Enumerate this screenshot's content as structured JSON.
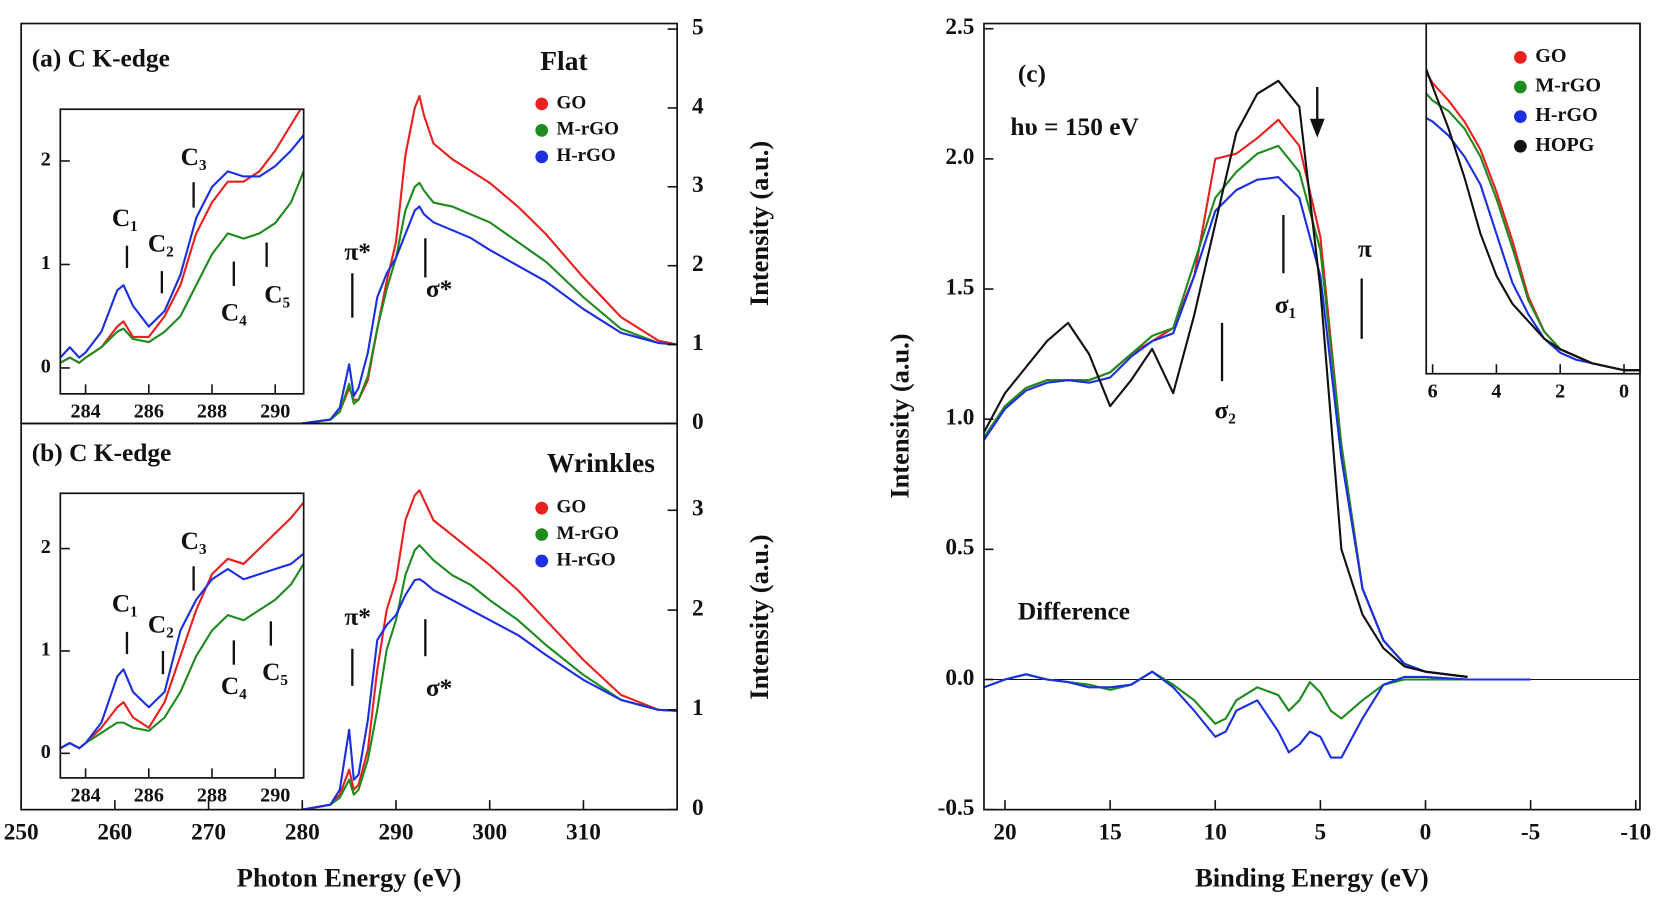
{
  "chart_data": [
    {
      "type": "line",
      "panel": "a-main",
      "annotations": [
        "(a) C K-edge",
        "π*",
        "σ*"
      ],
      "legend_title": "Flat",
      "ylabel": "Intensity (a.u.)",
      "x": [
        280,
        283,
        284,
        285,
        285.5,
        286,
        287,
        288,
        289,
        290,
        291,
        292,
        292.5,
        293,
        294,
        296,
        298,
        300,
        303,
        306,
        310,
        314,
        318,
        320
      ],
      "series": [
        {
          "name": "GO",
          "color": "#e8201e",
          "values": [
            0,
            0.05,
            0.15,
            0.45,
            0.3,
            0.3,
            0.55,
            1.2,
            1.8,
            2.3,
            3.4,
            4.0,
            4.15,
            3.9,
            3.55,
            3.35,
            3.2,
            3.05,
            2.75,
            2.4,
            1.85,
            1.35,
            1.05,
            1.0
          ]
        },
        {
          "name": "M-rGO",
          "color": "#1f8a1f",
          "values": [
            0,
            0.05,
            0.15,
            0.5,
            0.25,
            0.3,
            0.6,
            1.2,
            1.7,
            2.1,
            2.7,
            3.0,
            3.05,
            2.95,
            2.8,
            2.75,
            2.65,
            2.55,
            2.3,
            2.05,
            1.6,
            1.2,
            1.02,
            1.0
          ]
        },
        {
          "name": "H-rGO",
          "color": "#1c2fe0",
          "values": [
            0,
            0.05,
            0.2,
            0.75,
            0.35,
            0.45,
            0.9,
            1.6,
            1.9,
            2.1,
            2.4,
            2.7,
            2.75,
            2.65,
            2.55,
            2.45,
            2.35,
            2.2,
            2.0,
            1.8,
            1.45,
            1.15,
            1.02,
            1.0
          ]
        }
      ],
      "xlim": [
        250,
        320
      ],
      "ylim": [
        0,
        5.07
      ],
      "yticks": [
        0,
        1,
        2,
        3,
        4,
        5
      ]
    },
    {
      "type": "line",
      "panel": "a-inset",
      "annotations": [
        "C₁",
        "C₂",
        "C₃",
        "C₄",
        "C₅"
      ],
      "x": [
        283.2,
        283.5,
        283.8,
        284,
        284.5,
        285,
        285.2,
        285.5,
        286,
        286.5,
        287,
        287.5,
        288,
        288.5,
        289,
        289.5,
        290,
        290.5,
        290.9
      ],
      "series": [
        {
          "name": "GO",
          "color": "#e8201e",
          "values": [
            0.05,
            0.1,
            0.05,
            0.1,
            0.2,
            0.4,
            0.45,
            0.3,
            0.3,
            0.5,
            0.8,
            1.3,
            1.6,
            1.8,
            1.8,
            1.9,
            2.1,
            2.35,
            2.55
          ]
        },
        {
          "name": "M-rGO",
          "color": "#1f8a1f",
          "values": [
            0.05,
            0.1,
            0.05,
            0.1,
            0.2,
            0.35,
            0.38,
            0.28,
            0.25,
            0.35,
            0.5,
            0.8,
            1.1,
            1.3,
            1.25,
            1.3,
            1.4,
            1.6,
            1.9
          ]
        },
        {
          "name": "H-rGO",
          "color": "#1c2fe0",
          "values": [
            0.1,
            0.2,
            0.1,
            0.15,
            0.35,
            0.75,
            0.8,
            0.6,
            0.4,
            0.55,
            0.9,
            1.45,
            1.75,
            1.9,
            1.85,
            1.85,
            1.95,
            2.1,
            2.25
          ]
        }
      ],
      "xlim": [
        283.2,
        290.9
      ],
      "ylim": [
        -0.25,
        2.5
      ],
      "xticks": [
        284,
        286,
        288,
        290
      ],
      "yticks": [
        0,
        1,
        2
      ]
    },
    {
      "type": "line",
      "panel": "b-main",
      "annotations": [
        "(b) C K-edge",
        "π*",
        "σ*"
      ],
      "legend_title": "Wrinkles",
      "xlabel": "Photon Energy (eV)",
      "ylabel": "Intensity (a.u.)",
      "x": [
        280,
        283,
        284,
        285,
        285.5,
        286,
        287,
        288,
        289,
        290,
        291,
        292,
        292.5,
        293,
        294,
        296,
        298,
        300,
        303,
        306,
        310,
        314,
        318,
        320
      ],
      "series": [
        {
          "name": "GO",
          "color": "#e8201e",
          "values": [
            0,
            0.05,
            0.15,
            0.4,
            0.2,
            0.25,
            0.6,
            1.4,
            2.0,
            2.3,
            2.9,
            3.15,
            3.2,
            3.1,
            2.9,
            2.75,
            2.6,
            2.45,
            2.2,
            1.9,
            1.5,
            1.15,
            1.0,
            0.99
          ]
        },
        {
          "name": "M-rGO",
          "color": "#1f8a1f",
          "values": [
            0,
            0.05,
            0.12,
            0.3,
            0.15,
            0.2,
            0.5,
            1.0,
            1.6,
            1.9,
            2.35,
            2.6,
            2.65,
            2.6,
            2.5,
            2.35,
            2.25,
            2.1,
            1.9,
            1.65,
            1.35,
            1.1,
            1.0,
            0.99
          ]
        },
        {
          "name": "H-rGO",
          "color": "#1c2fe0",
          "values": [
            0,
            0.05,
            0.2,
            0.8,
            0.3,
            0.35,
            0.9,
            1.7,
            1.85,
            1.95,
            2.15,
            2.3,
            2.31,
            2.28,
            2.2,
            2.1,
            2.0,
            1.9,
            1.75,
            1.55,
            1.3,
            1.1,
            1.0,
            0.99
          ]
        }
      ],
      "xlim": [
        250,
        320
      ],
      "ylim": [
        0,
        3.87
      ],
      "xticks": [
        250,
        260,
        270,
        280,
        290,
        300,
        310
      ],
      "yticks": [
        0,
        1,
        2,
        3
      ]
    },
    {
      "type": "line",
      "panel": "b-inset",
      "annotations": [
        "C₁",
        "C₂",
        "C₃",
        "C₄",
        "C₅"
      ],
      "x": [
        283.2,
        283.5,
        283.8,
        284,
        284.5,
        285,
        285.2,
        285.5,
        286,
        286.5,
        287,
        287.5,
        288,
        288.5,
        289,
        289.5,
        290,
        290.5,
        290.9
      ],
      "series": [
        {
          "name": "GO",
          "color": "#e8201e",
          "values": [
            0.05,
            0.1,
            0.05,
            0.1,
            0.25,
            0.45,
            0.5,
            0.35,
            0.25,
            0.5,
            0.95,
            1.4,
            1.75,
            1.9,
            1.85,
            2.0,
            2.15,
            2.3,
            2.45
          ]
        },
        {
          "name": "M-rGO",
          "color": "#1f8a1f",
          "values": [
            0.05,
            0.1,
            0.05,
            0.1,
            0.2,
            0.3,
            0.3,
            0.25,
            0.22,
            0.35,
            0.6,
            0.95,
            1.2,
            1.35,
            1.3,
            1.4,
            1.5,
            1.65,
            1.85
          ]
        },
        {
          "name": "H-rGO",
          "color": "#1c2fe0",
          "values": [
            0.05,
            0.1,
            0.05,
            0.1,
            0.3,
            0.75,
            0.82,
            0.6,
            0.45,
            0.6,
            1.2,
            1.5,
            1.7,
            1.8,
            1.7,
            1.75,
            1.8,
            1.85,
            1.95
          ]
        }
      ],
      "xlim": [
        283.2,
        290.9
      ],
      "ylim": [
        -0.24,
        2.54
      ],
      "xticks": [
        284,
        286,
        288,
        290
      ],
      "yticks": [
        0,
        1,
        2
      ]
    },
    {
      "type": "line",
      "panel": "c-main",
      "annotations": [
        "(c)",
        "hυ = 150 eV",
        "Difference",
        "σ₂",
        "σ₁",
        "π"
      ],
      "xlabel": "Binding Energy (eV)",
      "ylabel": "Intensity (a.u.)",
      "x": [
        21,
        20,
        19,
        18,
        17,
        16,
        15,
        14,
        13,
        12,
        11,
        10,
        9,
        8,
        7,
        6,
        5,
        4,
        3,
        2,
        1,
        0,
        -1,
        -2
      ],
      "series": [
        {
          "name": "GO",
          "color": "#e8201e",
          "values": [
            0.93,
            1.05,
            1.12,
            1.15,
            1.15,
            1.15,
            1.18,
            1.25,
            1.3,
            1.35,
            1.55,
            2.0,
            2.02,
            2.08,
            2.15,
            2.05,
            1.7,
            0.9,
            0.35,
            0.15,
            0.06,
            0.03,
            0.02,
            0.01
          ]
        },
        {
          "name": "M-rGO",
          "color": "#1f8a1f",
          "values": [
            0.93,
            1.05,
            1.12,
            1.15,
            1.15,
            1.15,
            1.18,
            1.25,
            1.32,
            1.35,
            1.6,
            1.85,
            1.95,
            2.02,
            2.05,
            1.95,
            1.65,
            0.9,
            0.35,
            0.15,
            0.06,
            0.03,
            0.02,
            0.01
          ]
        },
        {
          "name": "H-rGO",
          "color": "#1c2fe0",
          "values": [
            0.92,
            1.04,
            1.11,
            1.14,
            1.15,
            1.14,
            1.16,
            1.24,
            1.3,
            1.33,
            1.55,
            1.8,
            1.88,
            1.92,
            1.93,
            1.85,
            1.55,
            0.85,
            0.35,
            0.15,
            0.06,
            0.03,
            0.02,
            0.01
          ]
        },
        {
          "name": "HOPG",
          "color": "#111111",
          "values": [
            0.95,
            1.1,
            1.2,
            1.3,
            1.37,
            1.25,
            1.05,
            1.15,
            1.27,
            1.1,
            1.4,
            1.75,
            2.1,
            2.25,
            2.3,
            2.2,
            1.5,
            0.5,
            0.25,
            0.12,
            0.05,
            0.03,
            0.02,
            0.01
          ]
        }
      ],
      "difference_x": [
        21,
        20,
        19,
        18,
        17,
        16,
        15,
        14,
        13,
        12,
        11,
        10,
        9.5,
        9,
        8,
        7,
        6.5,
        6,
        5.5,
        5,
        4.5,
        4,
        3,
        2,
        1,
        0,
        -2,
        -5
      ],
      "difference_series": [
        {
          "color": "#1f8a1f",
          "values": [
            -0.03,
            0,
            0.02,
            0,
            -0.01,
            -0.02,
            -0.04,
            -0.02,
            0.03,
            -0.02,
            -0.08,
            -0.17,
            -0.15,
            -0.08,
            -0.03,
            -0.06,
            -0.12,
            -0.08,
            -0.01,
            -0.05,
            -0.12,
            -0.15,
            -0.08,
            -0.02,
            0,
            0,
            0,
            0
          ]
        },
        {
          "color": "#1c2fe0",
          "values": [
            -0.03,
            0,
            0.02,
            0,
            -0.01,
            -0.03,
            -0.03,
            -0.02,
            0.03,
            -0.03,
            -0.12,
            -0.22,
            -0.2,
            -0.12,
            -0.08,
            -0.2,
            -0.28,
            -0.25,
            -0.2,
            -0.22,
            -0.3,
            -0.3,
            -0.15,
            -0.02,
            0.01,
            0.01,
            0,
            0
          ]
        }
      ],
      "zero_line": true,
      "xlim": [
        21,
        -10.2
      ],
      "ylim": [
        -0.5,
        2.52
      ],
      "xticks": [
        20,
        15,
        10,
        5,
        0,
        -5,
        -10
      ],
      "yticks": [
        -0.5,
        {
          "value": 0,
          "label": "0.0"
        },
        0.5,
        {
          "value": 1,
          "label": "1.0"
        },
        1.5,
        {
          "value": 2,
          "label": "2.0"
        },
        2.5
      ]
    },
    {
      "type": "line",
      "panel": "c-inset",
      "x": [
        6.2,
        6,
        5.5,
        5,
        4.5,
        4,
        3.5,
        3,
        2.5,
        2,
        1.5,
        1,
        0.5,
        0,
        -0.5
      ],
      "series": [
        {
          "name": "GO",
          "color": "#e8201e",
          "values": [
            0.86,
            0.83,
            0.78,
            0.72,
            0.64,
            0.52,
            0.38,
            0.22,
            0.12,
            0.07,
            0.05,
            0.03,
            0.02,
            0.01,
            0.01
          ]
        },
        {
          "name": "M-rGO",
          "color": "#1f8a1f",
          "values": [
            0.8,
            0.78,
            0.75,
            0.7,
            0.62,
            0.5,
            0.36,
            0.21,
            0.12,
            0.07,
            0.05,
            0.03,
            0.02,
            0.01,
            0.01
          ]
        },
        {
          "name": "H-rGO",
          "color": "#1c2fe0",
          "values": [
            0.73,
            0.72,
            0.68,
            0.62,
            0.54,
            0.4,
            0.26,
            0.17,
            0.1,
            0.06,
            0.04,
            0.03,
            0.02,
            0.01,
            0.01
          ]
        },
        {
          "name": "HOPG",
          "color": "#111111",
          "values": [
            0.87,
            0.82,
            0.7,
            0.56,
            0.4,
            0.28,
            0.2,
            0.15,
            0.1,
            0.07,
            0.05,
            0.03,
            0.02,
            0.01,
            0.01
          ]
        }
      ],
      "xlim": [
        6.2,
        -0.5
      ],
      "ylim": [
        0,
        1
      ],
      "xticks": [
        6,
        4,
        2,
        0
      ]
    }
  ]
}
